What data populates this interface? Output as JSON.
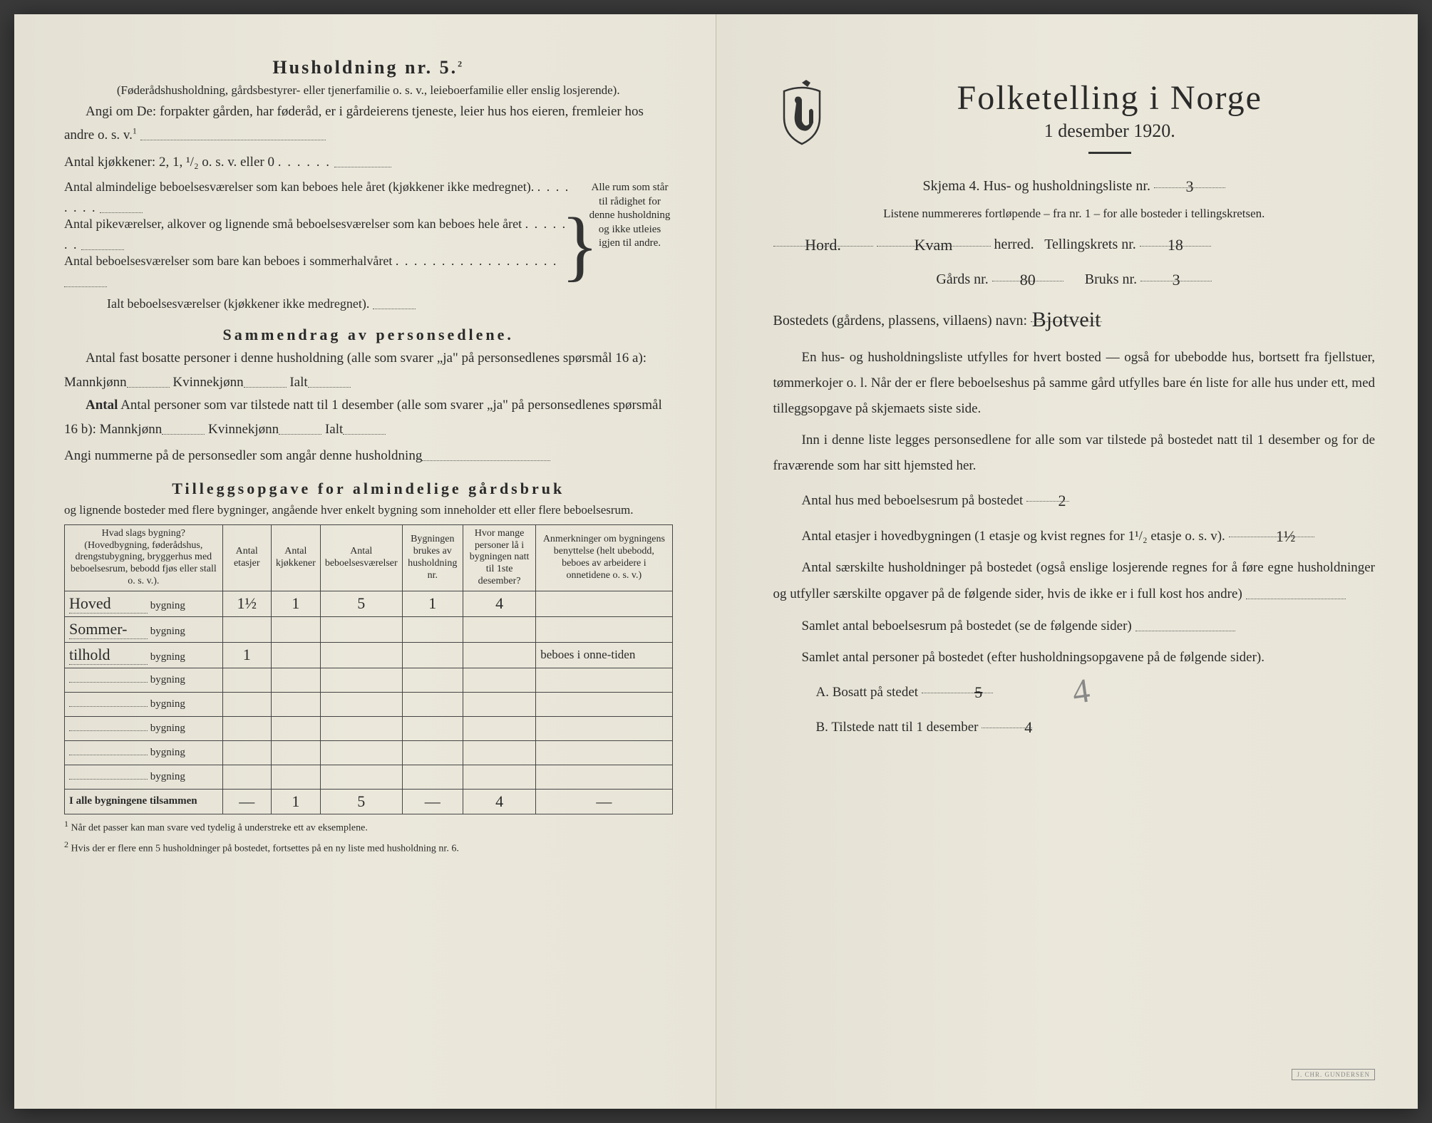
{
  "left": {
    "household_heading": "Husholdning nr. 5.",
    "household_sup": "2",
    "household_note": "(Føderådshusholdning, gårdsbestyrer- eller tjenerfamilie o. s. v., leieboerfamilie eller enslig losjerende).",
    "angi_line": "Angi om De: forpakter gården, har føderåd, er i gårdeierens tjeneste, leier hus hos eieren, fremleier hos andre o. s. v.",
    "angi_sup": "1",
    "kitchen_line": "Antal kjøkkener: 2, 1, ¹/₂ o. s. v. eller 0",
    "rooms_block": {
      "l1": "Antal almindelige beboelsesværelser som kan beboes hele året (kjøkkener ikke medregnet).",
      "l2": "Antal pikeværelser, alkover og lignende små beboelsesværelser som kan beboes hele året",
      "l3": "Antal beboelsesværelser som bare kan beboes i sommerhalvåret",
      "l4": "Ialt beboelsesværelser (kjøkkener ikke medregnet).",
      "right_text": "Alle rum som står til rådighet for denne husholdning og ikke utleies igjen til andre."
    },
    "summary_heading": "Sammendrag av personsedlene.",
    "summary_l1a": "Antal fast bosatte personer i denne husholdning (alle som svarer „ja\" på personsedlenes spørsmål 16 a): Mannkjønn",
    "summary_l1b": "Kvinnekjønn",
    "summary_l1c": "Ialt",
    "summary_l2a": "Antal personer som var tilstede natt til 1 desember (alle som svarer „ja\" på personsedlenes spørsmål 16 b): Mannkjønn",
    "summary_l2b": "Kvinnekjønn",
    "summary_l2c": "Ialt",
    "summary_l3": "Angi nummerne på de personsedler som angår denne husholdning",
    "tillegg_heading": "Tilleggsopgave for almindelige gårdsbruk",
    "tillegg_note": "og lignende bosteder med flere bygninger, angående hver enkelt bygning som inneholder ett eller flere beboelsesrum.",
    "table": {
      "headers": {
        "c1": "Hvad slags bygning?\n(Hovedbygning, føderådshus, drengstubygning, bryggerhus med beboelsesrum, bebodd fjøs eller stall o. s. v.).",
        "c2": "Antal etasjer",
        "c3": "Antal kjøkkener",
        "c4": "Antal beboelsesværelser",
        "c5": "Bygningen brukes av husholdning nr.",
        "c6": "Hvor mange personer lå i bygningen natt til 1ste desember?",
        "c7": "Anmerkninger om bygningens benyttelse (helt ubebodd, beboes av arbeidere i onnetidene o. s. v.)"
      },
      "suffix": "bygning",
      "rows": [
        {
          "name": "Hoved",
          "etasjer": "1½",
          "kjokken": "1",
          "vaerelser": "5",
          "hush": "1",
          "personer": "4",
          "anm": ""
        },
        {
          "name": "Sommer-",
          "etasjer": "",
          "kjokken": "",
          "vaerelser": "",
          "hush": "",
          "personer": "",
          "anm": ""
        },
        {
          "name": "tilhold",
          "etasjer": "1",
          "kjokken": "",
          "vaerelser": "",
          "hush": "",
          "personer": "",
          "anm": "beboes i onne-tiden"
        },
        {
          "name": "",
          "etasjer": "",
          "kjokken": "",
          "vaerelser": "",
          "hush": "",
          "personer": "",
          "anm": ""
        },
        {
          "name": "",
          "etasjer": "",
          "kjokken": "",
          "vaerelser": "",
          "hush": "",
          "personer": "",
          "anm": ""
        },
        {
          "name": "",
          "etasjer": "",
          "kjokken": "",
          "vaerelser": "",
          "hush": "",
          "personer": "",
          "anm": ""
        },
        {
          "name": "",
          "etasjer": "",
          "kjokken": "",
          "vaerelser": "",
          "hush": "",
          "personer": "",
          "anm": ""
        },
        {
          "name": "",
          "etasjer": "",
          "kjokken": "",
          "vaerelser": "",
          "hush": "",
          "personer": "",
          "anm": ""
        }
      ],
      "total_label": "I alle bygningene tilsammen",
      "totals": {
        "etasjer": "—",
        "kjokken": "1",
        "vaerelser": "5",
        "hush": "—",
        "personer": "4",
        "anm": "—"
      }
    },
    "footnote1": "Når det passer kan man svare ved tydelig å understreke ett av eksemplene.",
    "footnote2": "Hvis der er flere enn 5 husholdninger på bostedet, fortsettes på en ny liste med husholdning nr. 6."
  },
  "right": {
    "title": "Folketelling i Norge",
    "subtitle": "1 desember 1920.",
    "skjema_line": "Skjema 4.   Hus- og husholdningsliste nr.",
    "skjema_val": "3",
    "liste_note": "Listene nummereres fortløpende – fra nr. 1 – for alle bosteder i tellingskretsen.",
    "region": "Hord.",
    "herred": "Kvam",
    "herred_label": "herred.",
    "krets_label": "Tellingskrets nr.",
    "krets_val": "18",
    "gard_label": "Gårds nr.",
    "gard_val": "80",
    "bruk_label": "Bruks nr.",
    "bruk_val": "3",
    "bosted_label": "Bostedets (gårdens, plassens, villaens) navn:",
    "bosted_val": "Bjotveit",
    "para1": "En hus- og husholdningsliste utfylles for hvert bosted — også for ubebodde hus, bortsett fra fjellstuer, tømmerkojer o. l. Når der er flere beboelseshus på samme gård utfylles bare én liste for alle hus under ett, med tilleggsopgave på skjemaets siste side.",
    "para2": "Inn i denne liste legges personsedlene for alle som var tilstede på bostedet natt til 1 desember og for de fraværende som har sitt hjemsted her.",
    "hus_label": "Antal hus med beboelsesrum på bostedet",
    "hus_val": "2",
    "etasjer_text": "Antal etasjer i hovedbygningen (1 etasje og kvist regnes for 1¹/₂ etasje o. s. v).",
    "etasjer_val": "1½",
    "saerskilte_text": "Antal særskilte husholdninger på bostedet (også enslige losjerende regnes for å føre egne husholdninger og utfyller særskilte opgaver på de følgende sider, hvis de ikke er i full kost hos andre)",
    "samlet1": "Samlet antal beboelsesrum på bostedet (se de følgende sider)",
    "samlet2": "Samlet antal personer på bostedet (efter husholdningsopgavene på de følgende sider).",
    "bosatt_label": "A.  Bosatt på stedet",
    "bosatt_val_strike": "5",
    "bosatt_val_pencil": "4",
    "tilstede_label": "B.  Tilstede natt til 1 desember",
    "tilstede_val": "4",
    "stamp": "J. CHR. GUNDERSEN"
  },
  "colors": {
    "paper": "#e8e5d8",
    "ink": "#2a2a2a",
    "pencil": "#888888"
  }
}
